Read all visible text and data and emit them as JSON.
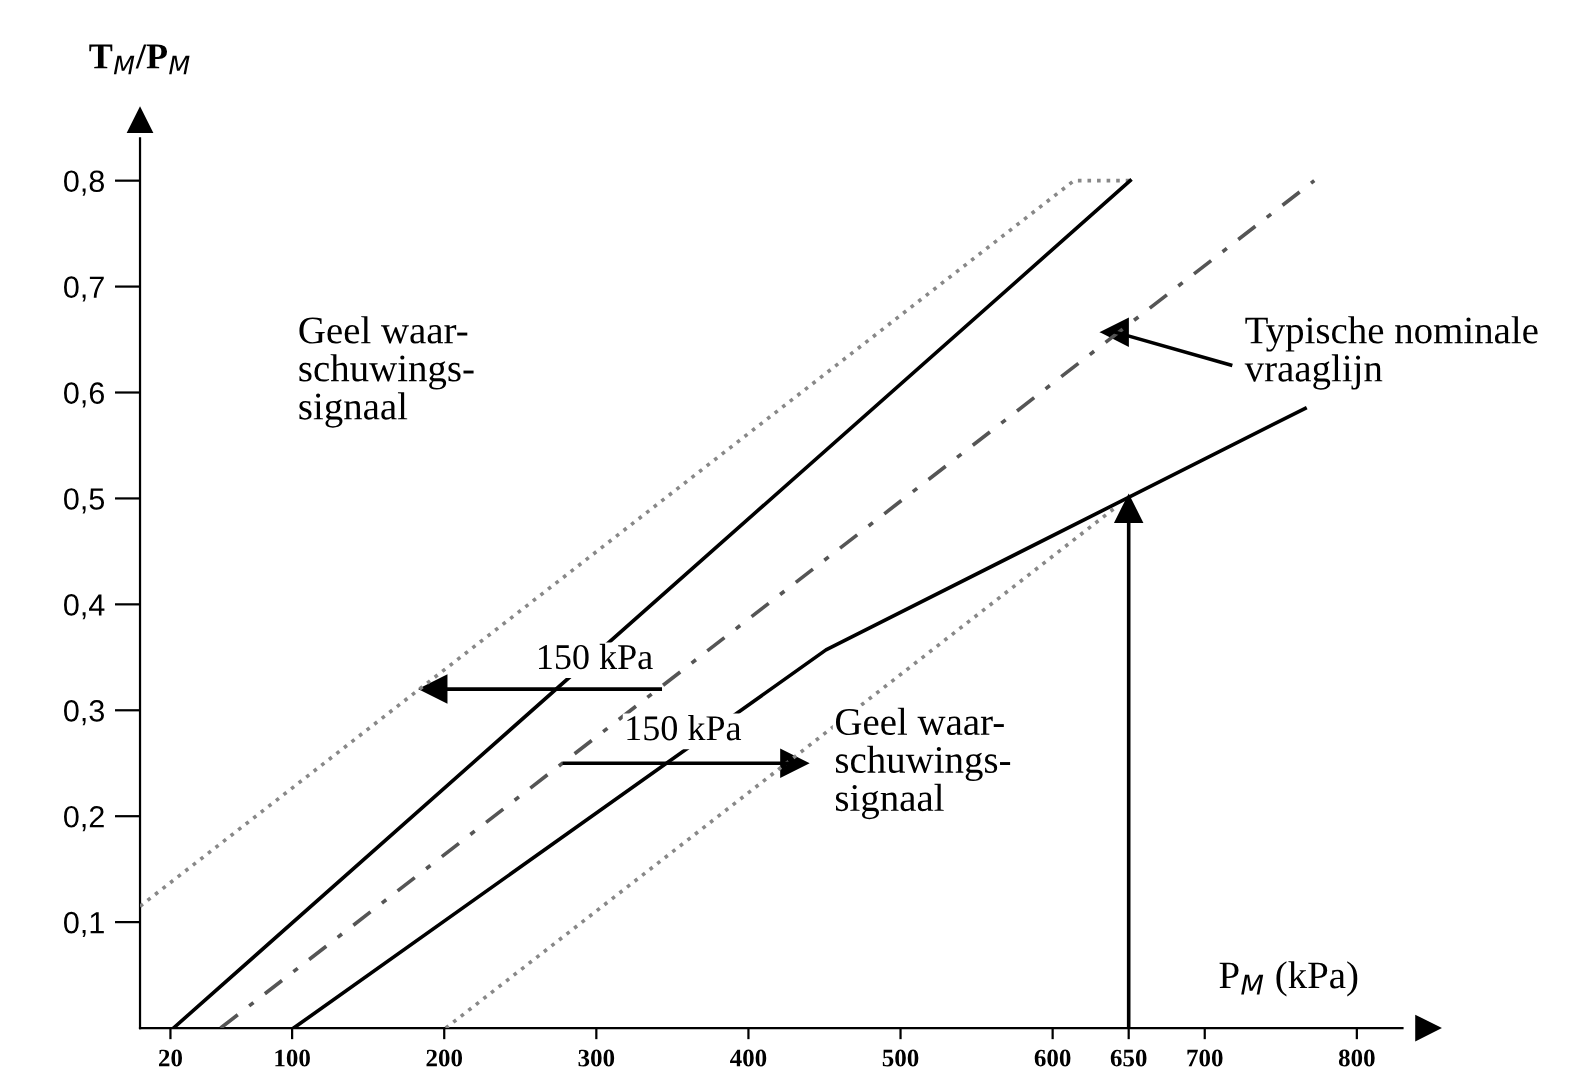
{
  "chart_data": {
    "type": "line",
    "xlabel": "P$_{M}$ (kPa)",
    "ylabel": "T$_{M}$/P$_{M}$",
    "xlim": [
      0,
      830
    ],
    "ylim": [
      0,
      0.84
    ],
    "xticks": [
      20,
      100,
      200,
      300,
      400,
      500,
      600,
      650,
      700,
      800
    ],
    "yticks": [
      {
        "value": 0.1,
        "label": "0,1"
      },
      {
        "value": 0.2,
        "label": "0,2"
      },
      {
        "value": 0.3,
        "label": "0,3"
      },
      {
        "value": 0.4,
        "label": "0,4"
      },
      {
        "value": 0.5,
        "label": "0,5"
      },
      {
        "value": 0.6,
        "label": "0,6"
      },
      {
        "value": 0.7,
        "label": "0,7"
      },
      {
        "value": 0.8,
        "label": "0,8"
      }
    ],
    "grid": false,
    "legend": false,
    "series": [
      {
        "color": "#888888",
        "line_style": "dotted",
        "marker": "none",
        "x": [
          0,
          614,
          651
        ],
        "values": [
          0.115,
          0.8,
          0.8
        ]
      },
      {
        "color": "#000000",
        "line_style": "solid",
        "marker": "none",
        "x": [
          22,
          651
        ],
        "values": [
          0,
          0.8
        ]
      },
      {
        "color": "#555555",
        "line_style": "dashed",
        "marker": "none",
        "x": [
          53,
          772
        ],
        "values": [
          0,
          0.8
        ]
      },
      {
        "color": "#000000",
        "line_style": "solid",
        "marker": "none",
        "x": [
          101,
          451,
          766
        ],
        "values": [
          0,
          0.357,
          0.585
        ]
      },
      {
        "color": "#888888",
        "line_style": "dotted",
        "marker": "none",
        "x": [
          201,
          640
        ],
        "values": [
          0,
          0.49
        ]
      },
      {
        "color": "#000000",
        "line_style": "solid",
        "marker": "triangle",
        "x": [
          650,
          650
        ],
        "values": [
          0,
          0.49
        ]
      },
      {
        "color": "#000000",
        "line_style": "solid",
        "marker": "triangle",
        "x": [
          342,
          193
        ],
        "values": [
          0.32,
          0.32
        ]
      },
      {
        "color": "#000000",
        "line_style": "solid",
        "marker": "triangle",
        "x": [
          279,
          430
        ],
        "values": [
          0.25,
          0.25
        ]
      },
      {
        "color": "#000000",
        "line_style": "solid",
        "marker": "triangle",
        "x": [
          717,
          641
        ],
        "values": [
          0.626,
          0.657
        ]
      }
    ],
    "annotations": [
      "Geel waar-\nschuwings-\nsignaal",
      "150 kPa",
      "150 kPa",
      "Typische nominale\nvraaglijn",
      "Geel waar-\nschuwings-\nsignaal"
    ]
  }
}
